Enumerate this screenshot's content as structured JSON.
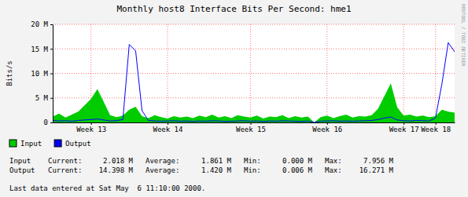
{
  "chart_data": {
    "type": "line",
    "title": "Monthly host8 Interface Bits Per Second: hme1",
    "y_label": "Bits/s",
    "annotations": [
      "RRDTOOL / TOBI OETIKER"
    ],
    "footer": "Last data entered at Sat May  6 11:10:00 2000.",
    "categories": [
      null,
      null,
      null,
      null,
      null,
      null,
      "Week 13",
      null,
      null,
      null,
      null,
      null,
      null,
      null,
      null,
      null,
      null,
      null,
      "Week 14",
      null,
      null,
      null,
      null,
      null,
      null,
      null,
      null,
      null,
      null,
      null,
      null,
      "Week 15",
      null,
      null,
      null,
      null,
      null,
      null,
      null,
      null,
      null,
      null,
      null,
      "Week 16",
      null,
      null,
      null,
      null,
      null,
      null,
      null,
      null,
      null,
      null,
      null,
      "Week 17",
      null,
      null,
      null,
      null,
      "Week 18",
      null,
      null,
      null
    ],
    "series": [
      {
        "name": "Input",
        "color": "#00cc00",
        "type": "area",
        "values": [
          1200000,
          1800000,
          1000000,
          1600000,
          2200000,
          3500000,
          4800000,
          6800000,
          4200000,
          1500000,
          1100000,
          1400000,
          2600000,
          3200000,
          1300000,
          900000,
          1500000,
          1100000,
          800000,
          1300000,
          1000000,
          1200000,
          900000,
          1400000,
          1100000,
          1600000,
          1000000,
          1300000,
          900000,
          1500000,
          1200000,
          1000000,
          1400000,
          800000,
          1200000,
          1100000,
          1500000,
          900000,
          1300000,
          1000000,
          1200000,
          0,
          1100000,
          1400000,
          900000,
          1300000,
          1600000,
          1000000,
          1300000,
          1200000,
          1500000,
          2800000,
          5400000,
          7956000,
          3100000,
          1400000,
          1600000,
          1200000,
          1400000,
          1100000,
          1300000,
          2600000,
          2200000,
          2018000
        ]
      },
      {
        "name": "Output",
        "color": "#0000ff",
        "type": "line",
        "values": [
          400000,
          300000,
          350000,
          250000,
          400000,
          500000,
          600000,
          700000,
          500000,
          300000,
          350000,
          600000,
          15900000,
          14600000,
          2400000,
          400000,
          300000,
          250000,
          300000,
          350000,
          250000,
          300000,
          200000,
          300000,
          250000,
          350000,
          300000,
          200000,
          250000,
          300000,
          350000,
          250000,
          300000,
          200000,
          300000,
          250000,
          350000,
          300000,
          250000,
          200000,
          300000,
          6000,
          250000,
          300000,
          350000,
          250000,
          300000,
          250000,
          300000,
          350000,
          400000,
          600000,
          900000,
          1100000,
          500000,
          350000,
          300000,
          400000,
          350000,
          300000,
          900000,
          7800000,
          16271000,
          14398000
        ]
      }
    ],
    "ylim": [
      0,
      20000000
    ],
    "yticks": [
      0,
      {
        "value": 5000000,
        "label": "5 M"
      },
      {
        "value": 10000000,
        "label": "10 M"
      },
      {
        "value": 15000000,
        "label": "15 M"
      },
      {
        "value": 20000000,
        "label": "20 M"
      }
    ],
    "grid": true,
    "legend": "bottom left",
    "stats": {
      "columns": [
        "Current:",
        "Average:",
        "Min:",
        "Max:"
      ],
      "rows": [
        [
          {
            "value": 2018000,
            "label": "2.018 M"
          },
          {
            "value": 1861000,
            "label": "1.861 M"
          },
          {
            "value": 0,
            "label": "0.000 M"
          },
          {
            "value": 7956000,
            "label": "7.956 M"
          }
        ],
        [
          {
            "value": 14398000,
            "label": "14.398 M"
          },
          {
            "value": 1420000,
            "label": "1.420 M"
          },
          {
            "value": 6000,
            "label": "0.006 M"
          },
          {
            "value": 16271000,
            "label": "16.271 M"
          }
        ]
      ]
    }
  }
}
